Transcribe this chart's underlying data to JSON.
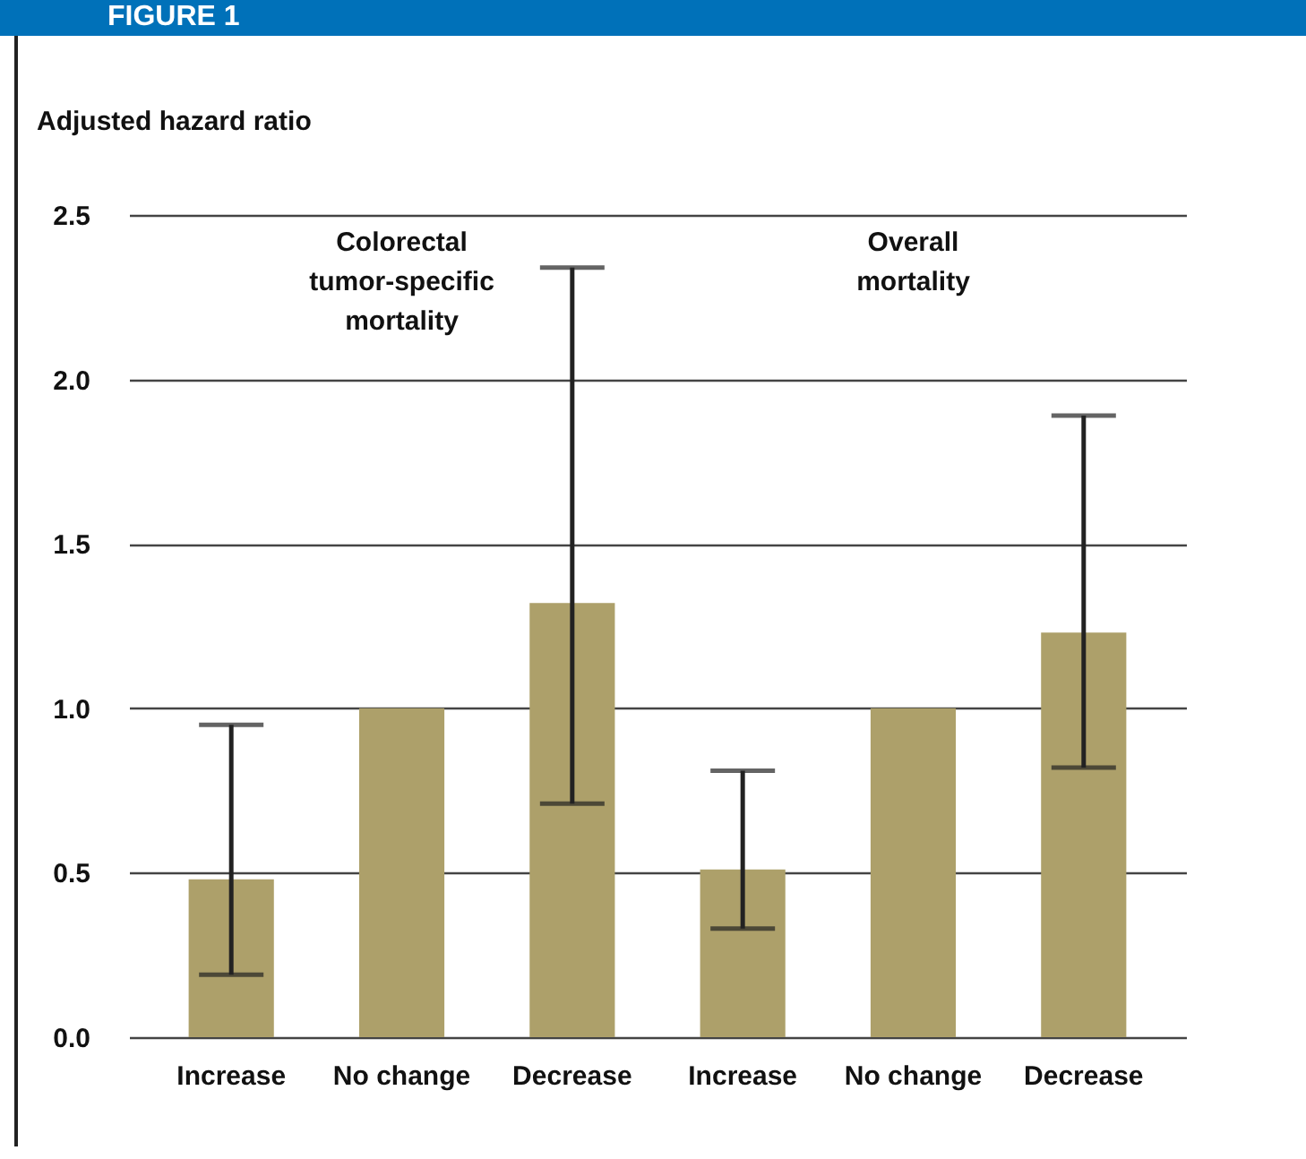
{
  "chart_data": {
    "type": "bar",
    "title": "FIGURE 1",
    "ylabel": "Adjusted hazard ratio",
    "categories": [
      "Increase",
      "No change",
      "Decrease",
      "Increase",
      "No change",
      "Decrease"
    ],
    "values": [
      0.48,
      1.0,
      1.32,
      0.51,
      1.0,
      1.23
    ],
    "errors": [
      [
        0.19,
        0.95
      ],
      null,
      [
        0.71,
        2.34
      ],
      [
        0.33,
        0.81
      ],
      null,
      [
        0.82,
        1.89
      ]
    ],
    "color": "#ada06a",
    "ylim": [
      0,
      2.5
    ],
    "yticks": [
      {
        "value": 0,
        "label": "0.0"
      },
      0.5,
      {
        "value": 1,
        "label": "1.0"
      },
      1.5,
      {
        "value": 2,
        "label": "2.0"
      },
      2.5
    ],
    "grid": "y",
    "annotations": [
      "Colorectal tumor-specific mortality",
      "Overall mortality"
    ]
  }
}
